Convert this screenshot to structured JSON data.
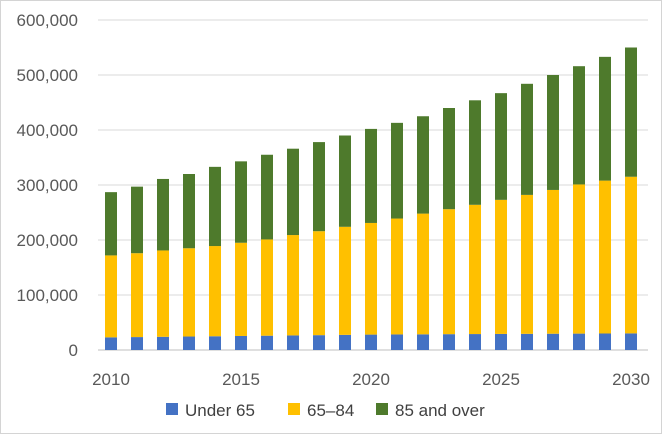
{
  "chart_data": {
    "type": "bar",
    "stacked": true,
    "x": [
      2010,
      2011,
      2012,
      2013,
      2014,
      2015,
      2016,
      2017,
      2018,
      2019,
      2020,
      2021,
      2022,
      2023,
      2024,
      2025,
      2026,
      2027,
      2028,
      2029,
      2030
    ],
    "series": [
      {
        "name": "Under 65",
        "color": "#4472c4",
        "values": [
          23000,
          23500,
          24000,
          24500,
          25000,
          25500,
          26000,
          26500,
          27000,
          27500,
          28000,
          28300,
          28500,
          28800,
          29000,
          29200,
          29400,
          29600,
          29800,
          30000,
          30200
        ]
      },
      {
        "name": "65–84",
        "color": "#ffc000",
        "values": [
          149000,
          152500,
          157000,
          160500,
          164000,
          169500,
          175000,
          182500,
          189000,
          196500,
          203000,
          210700,
          219500,
          227200,
          235000,
          243800,
          252600,
          261400,
          271200,
          278000,
          284800
        ]
      },
      {
        "name": "85 and over",
        "color": "#4e7a2c",
        "values": [
          115000,
          121000,
          130000,
          135000,
          144000,
          148000,
          154000,
          157000,
          162000,
          166000,
          171000,
          174000,
          177000,
          184000,
          190000,
          194000,
          202000,
          209000,
          215000,
          225000,
          235000
        ]
      }
    ],
    "ylim": [
      0,
      600000
    ],
    "y_ticks": [
      "0",
      "100,000",
      "200,000",
      "300,000",
      "400,000",
      "500,000",
      "600,000"
    ],
    "x_ticks": [
      "2010",
      "2015",
      "2020",
      "2025",
      "2030"
    ],
    "grid": true,
    "legend": "bottom",
    "title": "",
    "xlabel": "",
    "ylabel": ""
  }
}
